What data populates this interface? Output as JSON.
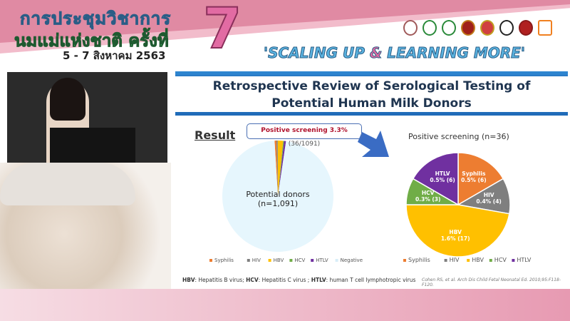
{
  "header": {
    "line1": "การประชุมวิชาการ",
    "line2": "นมแม่แห่งชาติ ครั้งที่",
    "dates": "5 - 7 สิงหาคม 2563",
    "number": "7",
    "slogan_a": "'SCALING UP ",
    "slogan_amp": "&",
    "slogan_b": " LEARNING MORE'"
  },
  "slide": {
    "title_line1": "Retrospective Review of Serological Testing of",
    "title_line2": "Potential Human Milk Donors",
    "result_heading": "Result",
    "callout_bold": "Positive screening 3.3%",
    "callout_rest": " (36/1091)",
    "footnote": {
      "b1": "HBV",
      "t1": ": Hepatitis B virus; ",
      "b2": "HCV",
      "t2": ": Hepatitis C virus ; ",
      "b3": "HTLV",
      "t3": ": human T cell lymphotropic virus"
    },
    "citation": "Cohen RS, et al. Arch Dis Child Fetal Neonatal Ed. 2010;95:F118-F120."
  },
  "colors": {
    "Syphilis": "#ed7d31",
    "HIV": "#7f7f7f",
    "HBV": "#ffc000",
    "HCV": "#70ad47",
    "HTLV": "#7030a0",
    "Negative": "#e6f6fd",
    "accent": "#1f6bb8"
  },
  "chart_data": [
    {
      "type": "pie",
      "title": "",
      "center_label": "Potential donors",
      "center_sub": "(n=1,091)",
      "categories": [
        "Syphilis",
        "HIV",
        "HBV",
        "HCV",
        "HTLV",
        "Negative"
      ],
      "values": [
        6,
        4,
        17,
        3,
        6,
        1055
      ],
      "legend": [
        "Syphilis",
        "HIV",
        "HBV",
        "HCV",
        "HTLV",
        "Negative"
      ],
      "legend_position": "bottom"
    },
    {
      "type": "pie",
      "title": "Positive screening (n=36)",
      "categories": [
        "Syphilis",
        "HIV",
        "HBV",
        "HCV",
        "HTLV"
      ],
      "values": [
        6,
        4,
        17,
        3,
        6
      ],
      "data_labels": [
        "0.5% (6)",
        "0.4% (4)",
        "1.6% (17)",
        "0.3% (3)",
        "0.5% (6)"
      ],
      "legend": [
        "Syphilis",
        "HIV",
        "HBV",
        "HCV",
        "HTLV"
      ],
      "legend_position": "bottom"
    }
  ]
}
